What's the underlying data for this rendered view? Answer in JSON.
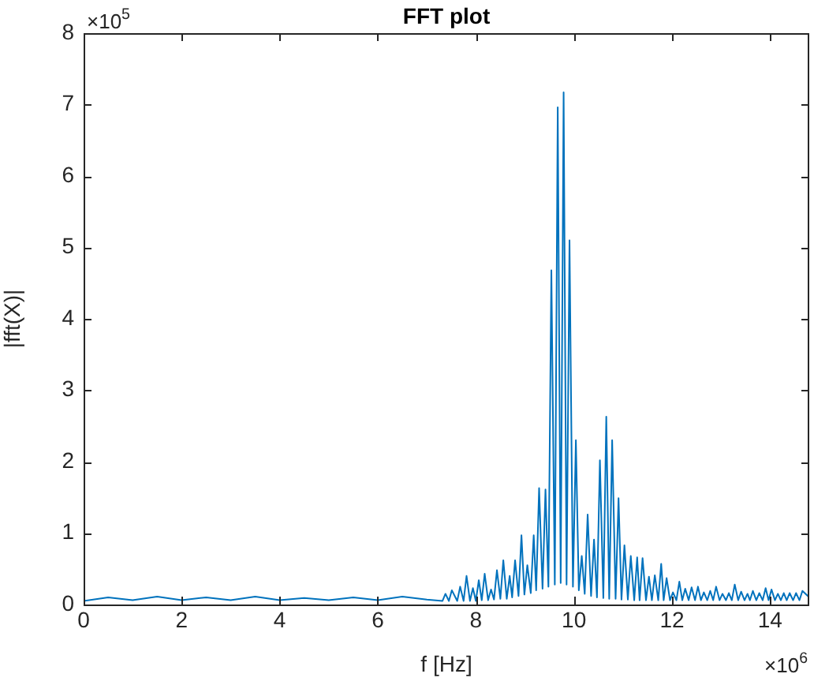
{
  "chart_data": {
    "type": "line",
    "title": "FFT plot",
    "xlabel": "f [Hz]",
    "ylabel": "|fft(X)|",
    "annotations": [
      "×10$^{5}$",
      "×10$^{6}$"
    ],
    "color": "#0072bd",
    "grid": false,
    "marker": "none",
    "line_style": "solid",
    "xlim": [
      0,
      14.8
    ],
    "ylim": [
      0,
      8
    ],
    "xticks": [
      0,
      2,
      4,
      6,
      8,
      10,
      12,
      14
    ],
    "yticks": [
      0,
      1,
      2,
      3,
      4,
      5,
      6,
      7,
      8
    ],
    "x": [
      0,
      0.5,
      1.0,
      1.5,
      2.0,
      2.5,
      3.0,
      3.5,
      4.0,
      4.5,
      5.0,
      5.5,
      6.0,
      6.5,
      7.0,
      7.32,
      7.38,
      7.45,
      7.51,
      7.62,
      7.68,
      7.75,
      7.81,
      7.88,
      7.94,
      8.0,
      8.06,
      8.12,
      8.18,
      8.25,
      8.31,
      8.37,
      8.43,
      8.5,
      8.56,
      8.63,
      8.69,
      8.74,
      8.8,
      8.87,
      8.93,
      8.99,
      9.05,
      9.12,
      9.18,
      9.23,
      9.29,
      9.36,
      9.42,
      9.48,
      9.54,
      9.61,
      9.67,
      9.73,
      9.79,
      9.85,
      9.91,
      9.98,
      10.04,
      10.1,
      10.16,
      10.22,
      10.28,
      10.35,
      10.41,
      10.47,
      10.53,
      10.6,
      10.66,
      10.72,
      10.78,
      10.85,
      10.91,
      10.97,
      11.03,
      11.1,
      11.16,
      11.23,
      11.29,
      11.34,
      11.4,
      11.47,
      11.53,
      11.59,
      11.65,
      11.72,
      11.78,
      11.83,
      11.89,
      11.96,
      12.02,
      12.09,
      12.15,
      12.21,
      12.27,
      12.34,
      12.4,
      12.47,
      12.53,
      12.59,
      12.65,
      12.72,
      12.78,
      12.84,
      12.9,
      12.97,
      13.03,
      13.1,
      13.16,
      13.22,
      13.28,
      13.35,
      13.41,
      13.48,
      13.54,
      13.59,
      13.65,
      13.72,
      13.78,
      13.85,
      13.91,
      13.97,
      14.03,
      14.1,
      14.16,
      14.22,
      14.28,
      14.34,
      14.4,
      14.47,
      14.53,
      14.6,
      14.66,
      14.8
    ],
    "values": [
      0.05,
      0.1,
      0.06,
      0.11,
      0.06,
      0.1,
      0.06,
      0.11,
      0.06,
      0.09,
      0.06,
      0.1,
      0.06,
      0.11,
      0.07,
      0.05,
      0.15,
      0.05,
      0.2,
      0.05,
      0.25,
      0.05,
      0.4,
      0.05,
      0.23,
      0.05,
      0.34,
      0.06,
      0.43,
      0.06,
      0.21,
      0.07,
      0.48,
      0.08,
      0.62,
      0.08,
      0.4,
      0.1,
      0.62,
      0.12,
      0.97,
      0.14,
      0.55,
      0.16,
      0.97,
      0.2,
      1.63,
      0.22,
      1.61,
      0.25,
      4.68,
      0.28,
      6.96,
      0.3,
      7.17,
      0.28,
      5.1,
      0.25,
      2.3,
      0.2,
      0.68,
      0.15,
      1.26,
      0.12,
      0.91,
      0.1,
      2.02,
      0.09,
      2.63,
      0.08,
      2.3,
      0.08,
      1.49,
      0.07,
      0.83,
      0.07,
      0.68,
      0.06,
      0.66,
      0.06,
      0.65,
      0.06,
      0.39,
      0.06,
      0.41,
      0.06,
      0.57,
      0.06,
      0.37,
      0.06,
      0.17,
      0.06,
      0.32,
      0.06,
      0.22,
      0.06,
      0.24,
      0.06,
      0.25,
      0.06,
      0.17,
      0.06,
      0.19,
      0.06,
      0.25,
      0.06,
      0.15,
      0.06,
      0.16,
      0.06,
      0.28,
      0.06,
      0.18,
      0.06,
      0.15,
      0.06,
      0.19,
      0.06,
      0.16,
      0.06,
      0.23,
      0.06,
      0.21,
      0.06,
      0.15,
      0.06,
      0.16,
      0.06,
      0.16,
      0.06,
      0.16,
      0.06,
      0.19,
      0.1
    ]
  }
}
